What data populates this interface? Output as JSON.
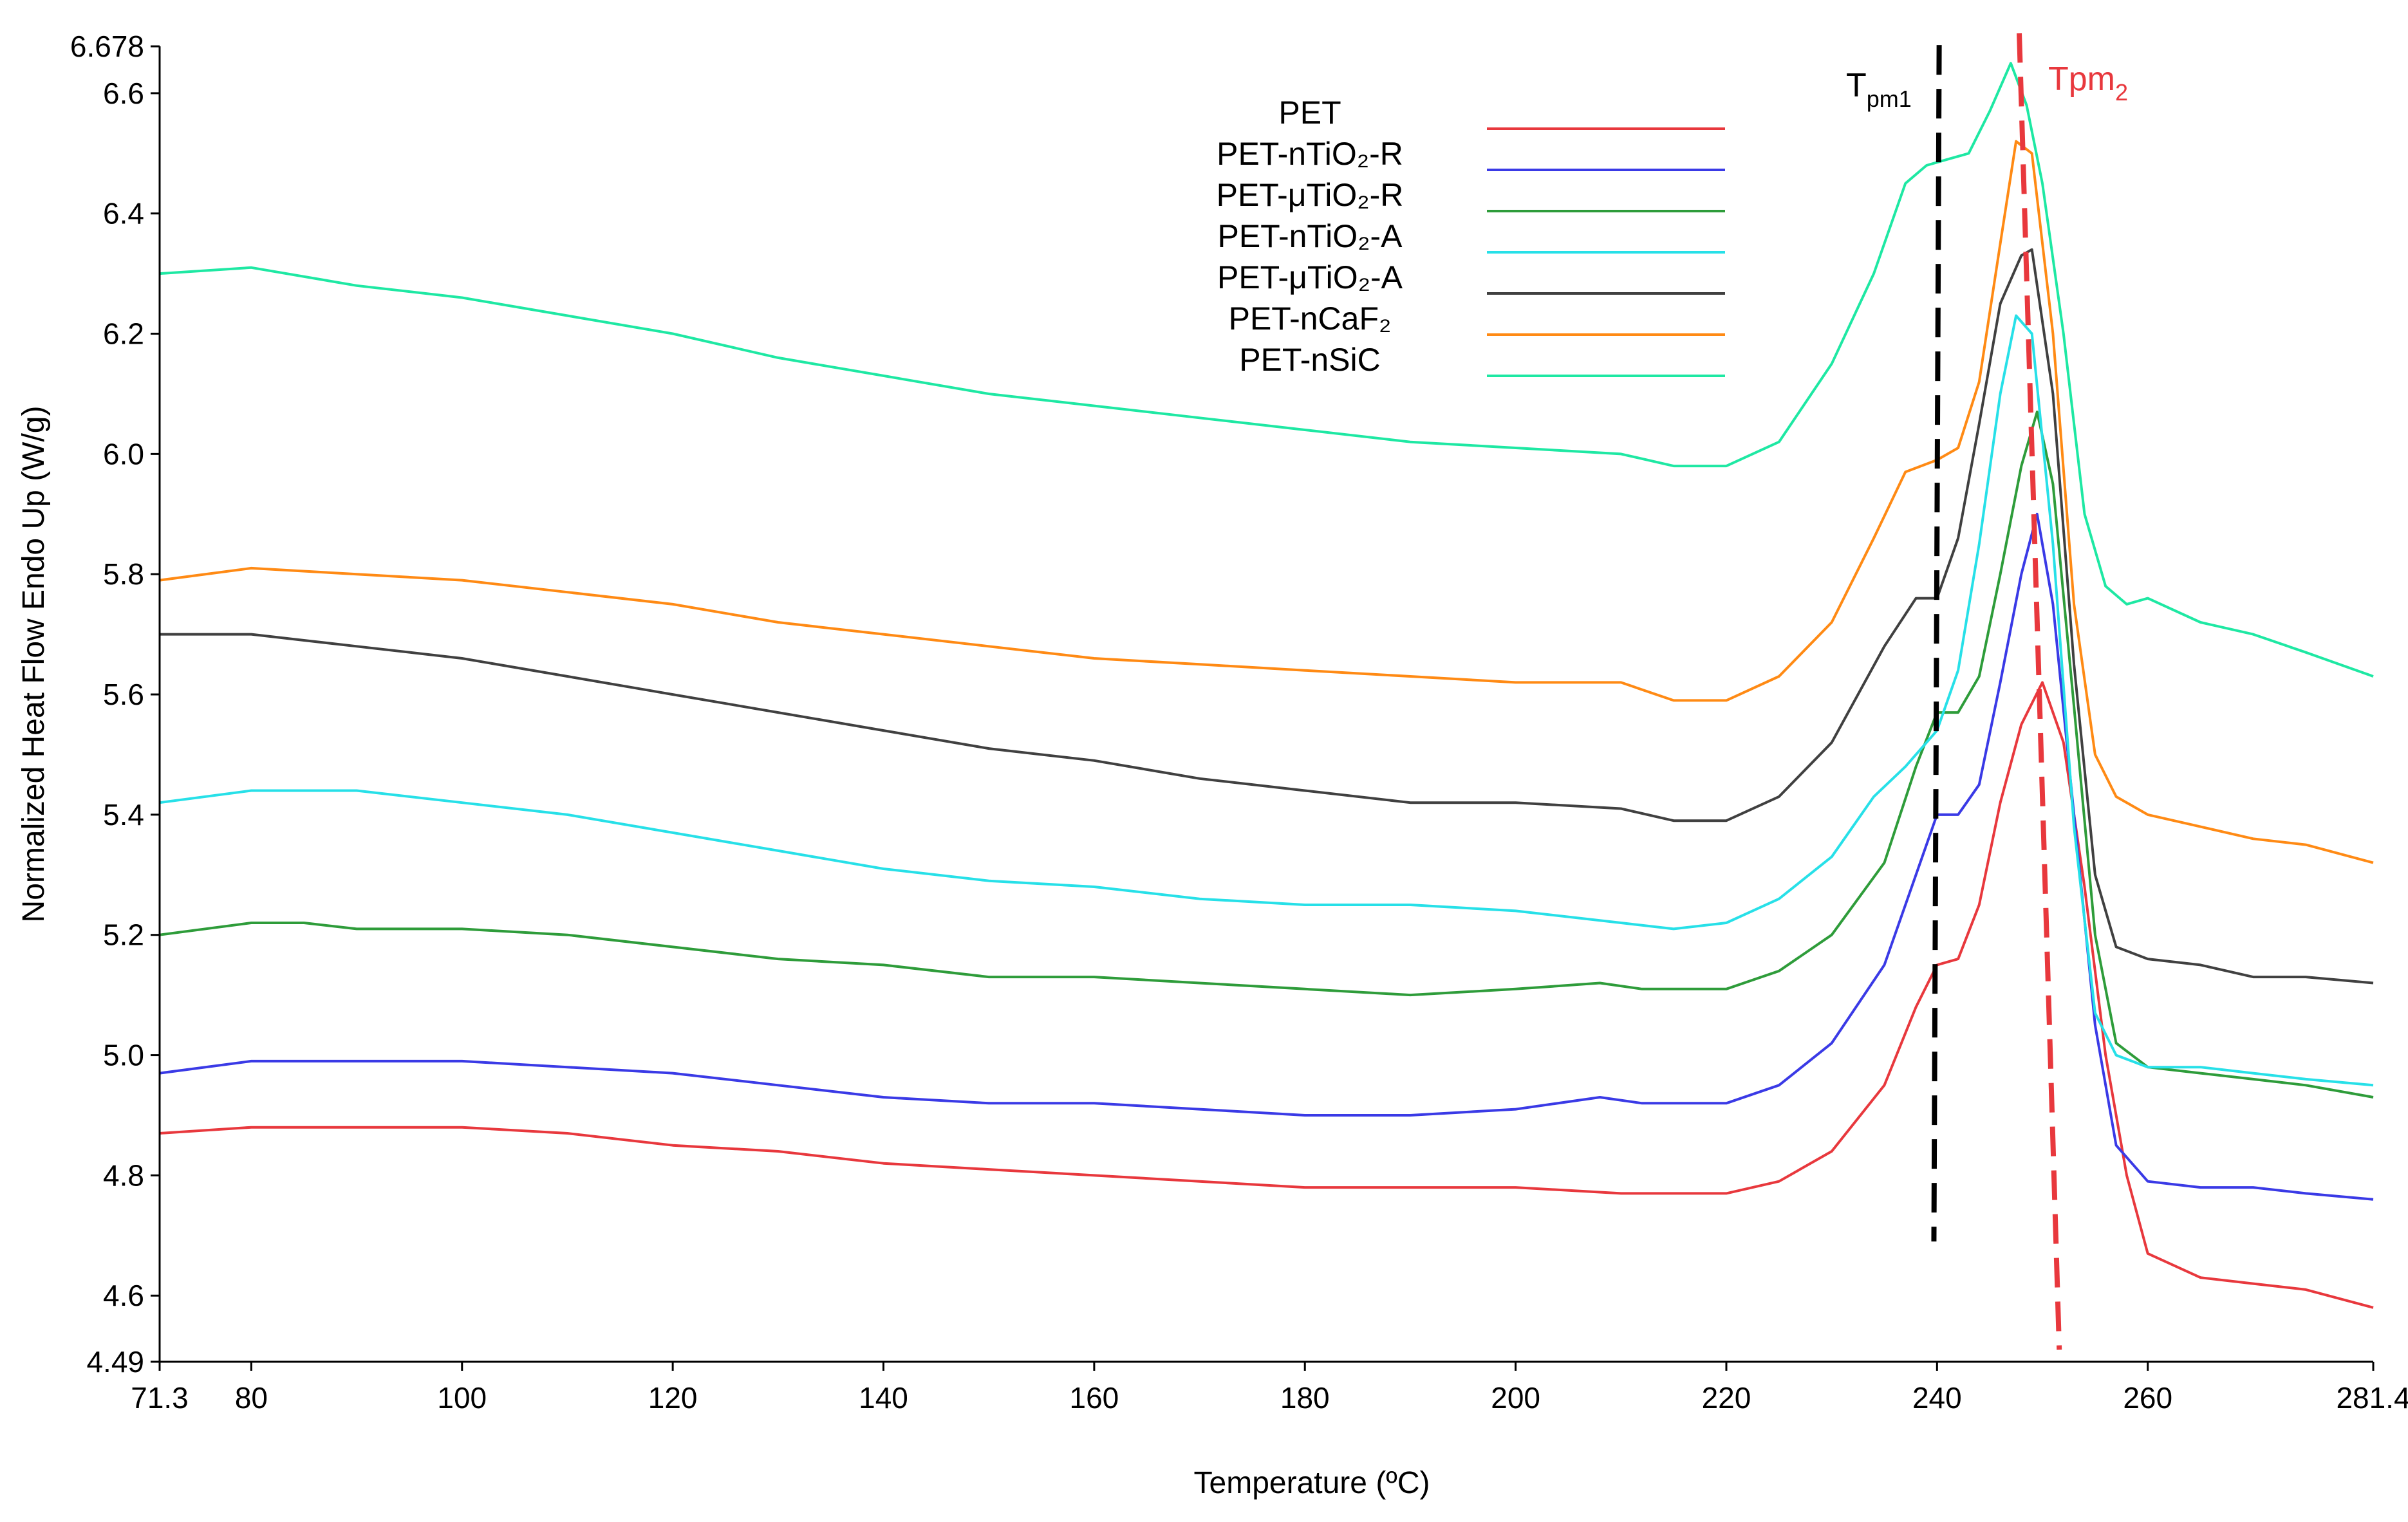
{
  "chart_data": {
    "type": "line",
    "title": "",
    "xlabel": "Temperature (ºC)",
    "ylabel": "Normalized Heat Flow Endo Up (W/g)",
    "xlim": [
      71.3,
      281.4
    ],
    "ylim": [
      4.49,
      6.678
    ],
    "x_ticks": [
      "71.3",
      "80",
      "100",
      "120",
      "140",
      "160",
      "180",
      "200",
      "220",
      "240",
      "260",
      "281.4"
    ],
    "x_tick_values": [
      71.3,
      80,
      100,
      120,
      140,
      160,
      180,
      200,
      220,
      240,
      260,
      281.4
    ],
    "y_ticks": [
      "4.49",
      "4.6",
      "4.8",
      "5.0",
      "5.2",
      "5.4",
      "5.6",
      "5.8",
      "6.0",
      "6.2",
      "6.4",
      "6.6",
      "6.678"
    ],
    "y_tick_values": [
      4.49,
      4.6,
      4.8,
      5.0,
      5.2,
      5.4,
      5.6,
      5.8,
      6.0,
      6.2,
      6.4,
      6.6,
      6.678
    ],
    "legend_position": "top-center",
    "series": [
      {
        "name": "PET",
        "color": "#e8383d",
        "x": [
          71.3,
          80,
          90,
          100,
          110,
          120,
          130,
          140,
          150,
          160,
          170,
          180,
          190,
          200,
          210,
          215,
          220,
          225,
          230,
          235,
          238,
          240,
          242,
          244,
          246,
          248,
          250,
          252,
          254,
          256,
          258,
          260,
          265,
          270,
          275,
          281.4
        ],
        "values": [
          4.87,
          4.88,
          4.88,
          4.88,
          4.87,
          4.85,
          4.84,
          4.82,
          4.81,
          4.8,
          4.79,
          4.78,
          4.78,
          4.78,
          4.77,
          4.77,
          4.77,
          4.79,
          4.84,
          4.95,
          5.08,
          5.15,
          5.16,
          5.25,
          5.42,
          5.55,
          5.62,
          5.52,
          5.28,
          5.0,
          4.8,
          4.67,
          4.63,
          4.62,
          4.61,
          4.58
        ]
      },
      {
        "name": "PET-nTiO₂-R",
        "color": "#3a3ae6",
        "x": [
          71.3,
          80,
          90,
          100,
          110,
          120,
          130,
          140,
          150,
          160,
          170,
          180,
          190,
          200,
          208,
          212,
          220,
          225,
          230,
          235,
          238,
          240,
          242,
          244,
          246,
          248,
          249.5,
          251,
          253,
          255,
          257,
          260,
          265,
          270,
          275,
          281.4
        ],
        "values": [
          4.97,
          4.99,
          4.99,
          4.99,
          4.98,
          4.97,
          4.95,
          4.93,
          4.92,
          4.92,
          4.91,
          4.9,
          4.9,
          4.91,
          4.93,
          4.92,
          4.92,
          4.95,
          5.02,
          5.15,
          5.3,
          5.4,
          5.4,
          5.45,
          5.62,
          5.8,
          5.9,
          5.75,
          5.4,
          5.05,
          4.85,
          4.79,
          4.78,
          4.78,
          4.77,
          4.76
        ]
      },
      {
        "name": "PET-μTiO₂-R",
        "color": "#2e9c3a",
        "x": [
          71.3,
          80,
          85,
          90,
          100,
          110,
          120,
          130,
          140,
          150,
          160,
          170,
          180,
          190,
          200,
          208,
          212,
          220,
          225,
          230,
          235,
          238,
          240,
          242,
          244,
          246,
          248,
          249.5,
          251,
          253,
          255,
          257,
          260,
          265,
          270,
          275,
          281.4
        ],
        "values": [
          5.2,
          5.22,
          5.22,
          5.21,
          5.21,
          5.2,
          5.18,
          5.16,
          5.15,
          5.13,
          5.13,
          5.12,
          5.11,
          5.1,
          5.11,
          5.12,
          5.11,
          5.11,
          5.14,
          5.2,
          5.32,
          5.48,
          5.57,
          5.57,
          5.63,
          5.8,
          5.98,
          6.07,
          5.95,
          5.58,
          5.2,
          5.02,
          4.98,
          4.97,
          4.96,
          4.95,
          4.93
        ]
      },
      {
        "name": "PET-nTiO₂-A",
        "color": "#27e0e8",
        "x": [
          71.3,
          80,
          90,
          100,
          110,
          120,
          130,
          140,
          150,
          160,
          170,
          180,
          190,
          200,
          210,
          215,
          220,
          225,
          230,
          234,
          237,
          240,
          242,
          244,
          246,
          247.5,
          249,
          251,
          253,
          255,
          257,
          260,
          265,
          270,
          275,
          281.4
        ],
        "values": [
          5.42,
          5.44,
          5.44,
          5.42,
          5.4,
          5.37,
          5.34,
          5.31,
          5.29,
          5.28,
          5.26,
          5.25,
          5.25,
          5.24,
          5.22,
          5.21,
          5.22,
          5.26,
          5.33,
          5.43,
          5.48,
          5.54,
          5.64,
          5.85,
          6.1,
          6.23,
          6.2,
          5.85,
          5.38,
          5.07,
          5.0,
          4.98,
          4.98,
          4.97,
          4.96,
          4.95
        ]
      },
      {
        "name": "PET-μTiO₂-A",
        "color": "#404040",
        "x": [
          71.3,
          80,
          85,
          90,
          100,
          110,
          120,
          130,
          140,
          150,
          160,
          170,
          180,
          190,
          200,
          210,
          215,
          220,
          225,
          230,
          235,
          238,
          240,
          242,
          244,
          246,
          248,
          249,
          251,
          253,
          255,
          257,
          260,
          265,
          270,
          275,
          281.4
        ],
        "values": [
          5.7,
          5.7,
          5.69,
          5.68,
          5.66,
          5.63,
          5.6,
          5.57,
          5.54,
          5.51,
          5.49,
          5.46,
          5.44,
          5.42,
          5.42,
          5.41,
          5.39,
          5.39,
          5.43,
          5.52,
          5.68,
          5.76,
          5.76,
          5.86,
          6.05,
          6.25,
          6.33,
          6.34,
          6.1,
          5.65,
          5.3,
          5.18,
          5.16,
          5.15,
          5.13,
          5.13,
          5.12
        ]
      },
      {
        "name": "PET-nCaF₂",
        "color": "#ff8a14",
        "x": [
          71.3,
          80,
          90,
          100,
          110,
          120,
          130,
          140,
          150,
          160,
          170,
          180,
          190,
          200,
          210,
          215,
          220,
          225,
          230,
          234,
          237,
          240,
          242,
          244,
          246,
          247.5,
          249,
          251,
          253,
          255,
          257,
          260,
          265,
          270,
          275,
          281.4
        ],
        "values": [
          5.79,
          5.81,
          5.8,
          5.79,
          5.77,
          5.75,
          5.72,
          5.7,
          5.68,
          5.66,
          5.65,
          5.64,
          5.63,
          5.62,
          5.62,
          5.59,
          5.59,
          5.63,
          5.72,
          5.86,
          5.97,
          5.99,
          6.01,
          6.12,
          6.35,
          6.52,
          6.5,
          6.2,
          5.75,
          5.5,
          5.43,
          5.4,
          5.38,
          5.36,
          5.35,
          5.32
        ]
      },
      {
        "name": "PET-nSiC",
        "color": "#1ee8a3",
        "x": [
          71.3,
          80,
          90,
          100,
          110,
          120,
          130,
          140,
          150,
          160,
          170,
          180,
          190,
          200,
          210,
          215,
          220,
          225,
          230,
          234,
          237,
          239,
          241,
          243,
          245,
          247,
          248.5,
          250,
          252,
          254,
          256,
          258,
          260,
          265,
          270,
          275,
          281.4
        ],
        "values": [
          6.3,
          6.31,
          6.28,
          6.26,
          6.23,
          6.2,
          6.16,
          6.13,
          6.1,
          6.08,
          6.06,
          6.04,
          6.02,
          6.01,
          6.0,
          5.98,
          5.98,
          6.02,
          6.15,
          6.3,
          6.45,
          6.48,
          6.49,
          6.5,
          6.57,
          6.65,
          6.58,
          6.45,
          6.2,
          5.9,
          5.78,
          5.75,
          5.76,
          5.72,
          5.7,
          5.67,
          5.63
        ]
      }
    ],
    "annotations": [
      {
        "text_main": "T",
        "text_sub": "pm1",
        "color": "#000000",
        "line_style": "dashed",
        "x_values": [
          240.2,
          239.7
        ],
        "y_values": [
          6.68,
          4.69
        ]
      },
      {
        "text_main": "Tpm",
        "text_sub": "2",
        "color": "#e8383d",
        "line_style": "dashed",
        "x_values": [
          247.8,
          251.6
        ],
        "y_values": [
          6.7,
          4.51
        ]
      }
    ]
  }
}
